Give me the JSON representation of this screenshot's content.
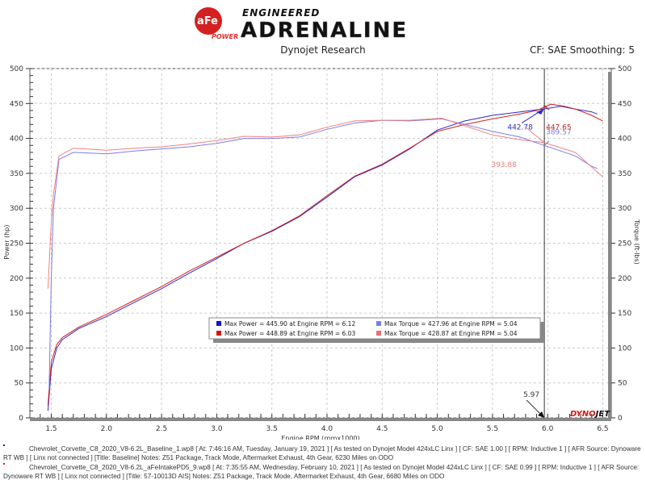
{
  "header": {
    "logo_text": "aFe POWER",
    "logo_tagline_top": "ENGINEERED",
    "logo_tagline_main": "ADRENALINE",
    "subtitle": "Dynojet Research",
    "correction": "CF: SAE Smoothing: 5"
  },
  "chart_data": {
    "type": "line",
    "xlabel": "Engine RPM (rpmx1000)",
    "ylabel_left": "Power (hp)",
    "ylabel_right": "Torque (ft-lbs)",
    "xlim": [
      1.3,
      6.58
    ],
    "ylim": [
      0,
      500
    ],
    "xticks": [
      "1.5",
      "2.0",
      "2.5",
      "3.0",
      "3.5",
      "4.0",
      "4.5",
      "5.0",
      "5.5",
      "6.0",
      "6.5"
    ],
    "yticks": [
      "0",
      "50",
      "100",
      "150",
      "200",
      "250",
      "300",
      "350",
      "400",
      "450",
      "500"
    ],
    "grid": true,
    "cursor_rpm": 5.97,
    "cursor_label": "5.97",
    "colors": {
      "power_baseline": "#2a2ad0",
      "power_afe": "#d02020",
      "torque_baseline": "#7d7de6",
      "torque_afe": "#ee8080"
    },
    "series": [
      {
        "id": "power_baseline",
        "axis": "left",
        "x": [
          1.47,
          1.5,
          1.55,
          1.6,
          1.75,
          2.0,
          2.25,
          2.5,
          2.75,
          3.0,
          3.25,
          3.5,
          3.75,
          4.0,
          4.25,
          4.5,
          4.75,
          5.0,
          5.25,
          5.5,
          5.75,
          6.0,
          6.12,
          6.25,
          6.4,
          6.45
        ],
        "y": [
          10,
          70,
          100,
          112,
          128,
          145,
          165,
          185,
          207,
          228,
          250,
          267,
          288,
          316,
          345,
          362,
          385,
          412,
          425,
          433,
          438,
          443,
          446,
          442,
          438,
          435
        ]
      },
      {
        "id": "power_afe",
        "axis": "left",
        "x": [
          1.47,
          1.5,
          1.55,
          1.6,
          1.75,
          2.0,
          2.25,
          2.5,
          2.75,
          3.0,
          3.25,
          3.5,
          3.75,
          4.0,
          4.25,
          4.5,
          4.75,
          5.0,
          5.25,
          5.5,
          5.75,
          5.9,
          6.03,
          6.15,
          6.25,
          6.4,
          6.5
        ],
        "y": [
          18,
          80,
          105,
          115,
          130,
          148,
          168,
          188,
          210,
          230,
          250,
          268,
          289,
          318,
          346,
          363,
          386,
          410,
          420,
          428,
          435,
          440,
          449,
          446,
          442,
          433,
          425
        ]
      },
      {
        "id": "torque_baseline",
        "axis": "right",
        "x": [
          1.48,
          1.5,
          1.52,
          1.57,
          1.7,
          2.0,
          2.25,
          2.5,
          2.75,
          3.0,
          3.25,
          3.5,
          3.75,
          4.0,
          4.25,
          4.5,
          4.75,
          5.04,
          5.25,
          5.5,
          5.75,
          5.97,
          6.25,
          6.4,
          6.45
        ],
        "y": [
          40,
          200,
          300,
          370,
          380,
          378,
          382,
          385,
          388,
          393,
          400,
          400,
          402,
          413,
          422,
          426,
          425,
          428,
          420,
          410,
          402,
          390,
          375,
          360,
          357
        ]
      },
      {
        "id": "torque_afe",
        "axis": "right",
        "x": [
          1.47,
          1.5,
          1.52,
          1.57,
          1.7,
          2.0,
          2.25,
          2.5,
          2.75,
          3.0,
          3.25,
          3.5,
          3.75,
          4.0,
          4.25,
          4.5,
          4.75,
          5.04,
          5.25,
          5.5,
          5.75,
          5.97,
          6.25,
          6.5
        ],
        "y": [
          185,
          280,
          320,
          375,
          386,
          383,
          386,
          388,
          392,
          397,
          403,
          402,
          405,
          416,
          425,
          426,
          426,
          429,
          418,
          405,
          398,
          394,
          380,
          345
        ]
      }
    ],
    "annotations": [
      {
        "series": "power_baseline",
        "text": "442.78",
        "x": 5.97,
        "y": 442.78,
        "color": "#2a2ad0"
      },
      {
        "series": "power_afe",
        "text": "447.65",
        "x": 5.97,
        "y": 447.65,
        "color": "#d02020"
      },
      {
        "series": "torque_baseline",
        "text": "389.57",
        "x": 5.97,
        "y": 389.57,
        "color": "#7d7de6"
      },
      {
        "series": "torque_afe",
        "text": "393.88",
        "x": 5.97,
        "y": 393.88,
        "color": "#ee8080"
      }
    ],
    "legend": [
      {
        "text": "Max Power = 445.90 at Engine RPM = 6.12",
        "color": "#1010d0"
      },
      {
        "text": "Max Torque = 427.96 at Engine RPM = 5.04",
        "color": "#7d7de6"
      },
      {
        "text": "Max Power = 448.89 at Engine RPM = 6.03",
        "color": "#e01010"
      },
      {
        "text": "Max Torque = 428.87 at Engine RPM = 5.04",
        "color": "#ee7070"
      }
    ],
    "watermark": "DYNOJET"
  },
  "footer": {
    "runs": [
      {
        "color": "#1010d0",
        "text": "Chevrolet_Corvette_C8_2020_V8-6.2L_Baseline_1.wp8 [ At: 7:46:16 AM, Tuesday, January 19, 2021 ] [ As tested on Dynojet Model 424xLC Linx ] [ CF: SAE 1.00 ] [ RPM: Inductive 1 ] [ AFR Source: Dynoware RT WB ] [ Linx not connected ] [Title: Baseline] Notes: Z51 Package, Track Mode, Aftermarket Exhaust, 4th Gear, 6230 Miles on ODO"
      },
      {
        "color": "#e01010",
        "text": "Chevrolet_Corvette_C8_2020_V8-6.2L_aFeIntakePD5_9.wp8 [ At: 7:35:55 AM, Wednesday, February 10, 2021 ] [ As tested on Dynojet Model 424xLC Linx ] [ CF: SAE 0.99 ] [ RPM: Inductive 1 ] [ AFR Source: Dynoware RT WB ] [ Linx not connected ] [Title: 57-10013D AIS] Notes: Z51 Package, Track Mode, Aftermarket Exhaust, 4th Gear, 6680 Miles on ODO"
      }
    ]
  }
}
